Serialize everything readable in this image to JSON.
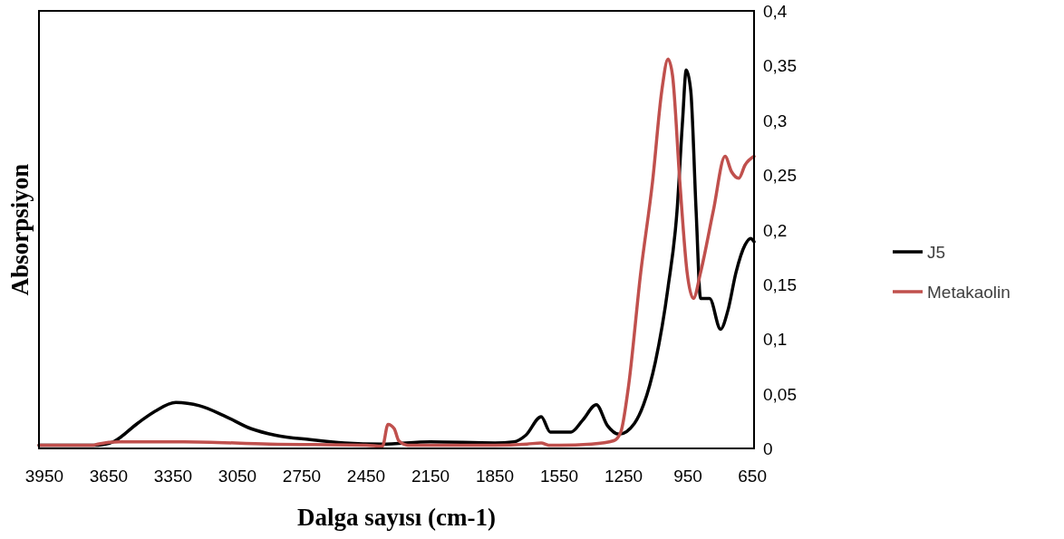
{
  "chart_data": {
    "type": "line",
    "xlabel": "Dalga sayısı (cm-1)",
    "ylabel": "Absorpsiyon",
    "xlim": [
      3975,
      642
    ],
    "ylim": [
      0,
      0.4
    ],
    "xticks": [
      3950,
      3650,
      3350,
      3050,
      2750,
      2450,
      2150,
      1850,
      1550,
      1250,
      950,
      650
    ],
    "yticks": [
      0,
      {
        "value": 0.05,
        "label": "0,05"
      },
      {
        "value": 0.1,
        "label": "0,1"
      },
      {
        "value": 0.15,
        "label": "0,15"
      },
      {
        "value": 0.2,
        "label": "0,2"
      },
      {
        "value": 0.25,
        "label": "0,25"
      },
      {
        "value": 0.3,
        "label": "0,3"
      },
      {
        "value": 0.35,
        "label": "0,35"
      },
      {
        "value": 0.4,
        "label": "0,4"
      }
    ],
    "grid": false,
    "legend": "right",
    "line_style": "solid",
    "marker": "none",
    "series": [
      {
        "name": "J5",
        "color": "#000000",
        "x": [
          3975,
          3700,
          3629,
          3515,
          3434,
          3337,
          3227,
          3113,
          2986,
          2872,
          2712,
          2551,
          2378,
          2150,
          1850,
          1761,
          1706,
          1634,
          1592,
          1495,
          1440,
          1377,
          1326,
          1271,
          1199,
          1157,
          1102,
          1043,
          1001,
          975,
          958,
          937,
          912,
          891,
          849,
          798,
          764,
          726,
          684,
          658,
          642
        ],
        "values": [
          0.003,
          0.003,
          0.006,
          0.023,
          0.034,
          0.042,
          0.039,
          0.03,
          0.018,
          0.012,
          0.008,
          0.005,
          0.004,
          0.006,
          0.005,
          0.006,
          0.012,
          0.029,
          0.015,
          0.015,
          0.026,
          0.04,
          0.021,
          0.013,
          0.023,
          0.04,
          0.079,
          0.147,
          0.217,
          0.3,
          0.346,
          0.327,
          0.217,
          0.137,
          0.137,
          0.109,
          0.126,
          0.161,
          0.186,
          0.192,
          0.189
        ]
      },
      {
        "name": "Metakaolin",
        "color": "#c0504d",
        "x": [
          3975,
          3720,
          3700,
          3600,
          3300,
          2900,
          2450,
          2374,
          2348,
          2319,
          2298,
          2256,
          1850,
          1700,
          1634,
          1600,
          1550,
          1400,
          1296,
          1263,
          1229,
          1170,
          1115,
          1072,
          1043,
          1022,
          988,
          954,
          925,
          891,
          832,
          777,
          747,
          713,
          684,
          642
        ],
        "values": [
          0.003,
          0.003,
          0.004,
          0.006,
          0.006,
          0.004,
          0.003,
          0.002,
          0.022,
          0.018,
          0.007,
          0.003,
          0.003,
          0.004,
          0.005,
          0.003,
          0.003,
          0.004,
          0.007,
          0.015,
          0.054,
          0.161,
          0.244,
          0.327,
          0.356,
          0.341,
          0.244,
          0.161,
          0.137,
          0.161,
          0.217,
          0.267,
          0.253,
          0.247,
          0.259,
          0.267
        ]
      }
    ]
  }
}
